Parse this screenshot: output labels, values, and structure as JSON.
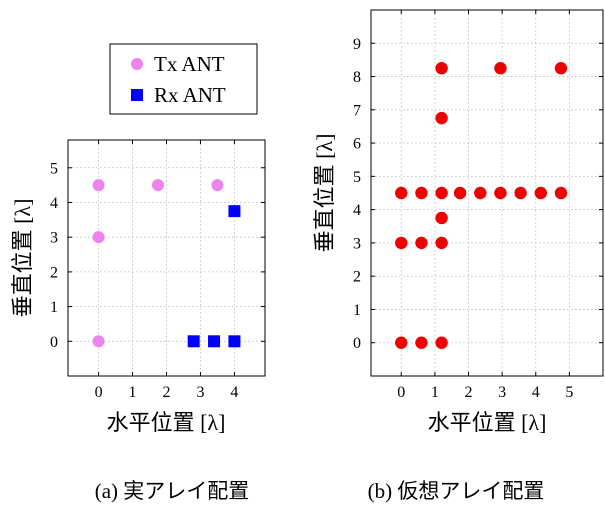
{
  "legend": {
    "entries": [
      {
        "label": "Tx ANT",
        "color": "#ee82ee",
        "marker": "circle"
      },
      {
        "label": "Rx ANT",
        "color": "#0000ff",
        "marker": "square"
      }
    ]
  },
  "chart_data": [
    {
      "type": "scatter",
      "caption": "(a) 実アレイ配置",
      "xlabel": "水平位置 [λ]",
      "ylabel": "垂直位置 [λ]",
      "xlim": [
        -0.9,
        4.9
      ],
      "ylim": [
        -1.0,
        5.8
      ],
      "xticks": [
        0,
        1,
        2,
        3,
        4
      ],
      "yticks": [
        0,
        1,
        2,
        3,
        4,
        5
      ],
      "grid": true,
      "legend_position": "above-plot",
      "series": [
        {
          "name": "Tx ANT",
          "marker": "circle",
          "color": "#ee82ee",
          "x": [
            0,
            0,
            0,
            1.75,
            3.5
          ],
          "y": [
            0,
            3,
            4.5,
            4.5,
            4.5
          ]
        },
        {
          "name": "Rx ANT",
          "marker": "square",
          "color": "#0000ff",
          "x": [
            2.8,
            3.4,
            4.0,
            4.0
          ],
          "y": [
            0,
            0,
            0,
            3.75
          ]
        }
      ]
    },
    {
      "type": "scatter",
      "caption": "(b) 仮想アレイ配置",
      "xlabel": "水平位置 [λ]",
      "ylabel": "垂直位置 [λ]",
      "xlim": [
        -0.9,
        6.0
      ],
      "ylim": [
        -1.0,
        10.0
      ],
      "xticks": [
        0,
        1,
        2,
        3,
        4,
        5
      ],
      "yticks": [
        0,
        1,
        2,
        3,
        4,
        5,
        6,
        7,
        8,
        9
      ],
      "grid": true,
      "series": [
        {
          "name": "",
          "marker": "circle",
          "color": "#ee0000",
          "x": [
            0,
            0.6,
            1.2,
            0,
            0.6,
            1.2,
            1.2,
            0,
            0.6,
            1.2,
            1.75,
            2.35,
            2.95,
            3.55,
            4.15,
            4.75,
            1.2,
            1.2,
            2.95,
            4.75
          ],
          "y": [
            0,
            0,
            0,
            3,
            3,
            3,
            3.75,
            4.5,
            4.5,
            4.5,
            4.5,
            4.5,
            4.5,
            4.5,
            4.5,
            4.5,
            6.75,
            8.25,
            8.25,
            8.25
          ]
        }
      ]
    }
  ]
}
